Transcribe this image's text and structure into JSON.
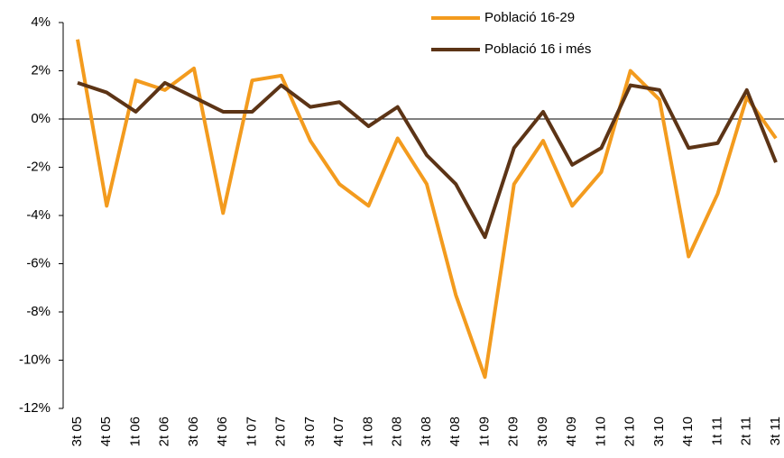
{
  "chart_data": {
    "type": "line",
    "categories": [
      "3t 05",
      "4t 05",
      "1t 06",
      "2t 06",
      "3t 06",
      "4t 06",
      "1t 07",
      "2t 07",
      "3t 07",
      "4t 07",
      "1t 08",
      "2t 08",
      "3t 08",
      "4t 08",
      "1t 09",
      "2t 09",
      "3t 09",
      "4t 09",
      "1t 10",
      "2t 10",
      "3t 10",
      "4t 10",
      "1t 11",
      "2t 11",
      "3t 11"
    ],
    "series": [
      {
        "name": "Població 16-29",
        "color": "#f39b1e",
        "values": [
          3.3,
          -3.6,
          1.6,
          1.2,
          2.1,
          -3.9,
          1.6,
          1.8,
          -0.9,
          -2.7,
          -3.6,
          -0.8,
          -2.7,
          -7.3,
          -10.7,
          -2.7,
          -0.9,
          -3.6,
          -2.2,
          2.0,
          0.8,
          -5.7,
          -3.1,
          0.9,
          -0.8
        ]
      },
      {
        "name": "Població 16 i més",
        "color": "#5c3416",
        "values": [
          1.5,
          1.1,
          0.3,
          1.5,
          0.9,
          0.3,
          0.3,
          1.4,
          0.5,
          0.7,
          -0.3,
          0.5,
          -1.5,
          -2.7,
          -4.9,
          -1.2,
          0.3,
          -1.9,
          -1.2,
          1.4,
          1.2,
          -1.2,
          -1.0,
          1.2,
          -1.8
        ]
      }
    ],
    "ylim": [
      -12,
      4
    ],
    "yticks": [
      {
        "value": -12,
        "label": "-12%"
      },
      {
        "value": -10,
        "label": "-10%"
      },
      {
        "value": -8,
        "label": "-8%"
      },
      {
        "value": -6,
        "label": "-6%"
      },
      {
        "value": -4,
        "label": "-4%"
      },
      {
        "value": -2,
        "label": "-2%"
      },
      {
        "value": 0,
        "label": "0%"
      },
      {
        "value": 2,
        "label": "2%"
      },
      {
        "value": 4,
        "label": "4%"
      }
    ],
    "legend": "top"
  }
}
